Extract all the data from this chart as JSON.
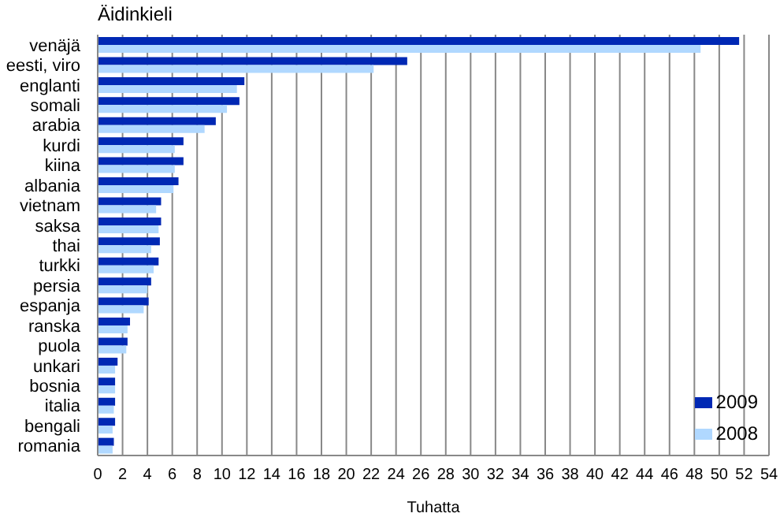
{
  "chart_data": {
    "type": "bar",
    "orientation": "horizontal",
    "title": "Äidinkieli",
    "xlabel": "Tuhatta",
    "categories": [
      "venäjä",
      "eesti, viro",
      "englanti",
      "somali",
      "arabia",
      "kurdi",
      "kiina",
      "albania",
      "vietnam",
      "saksa",
      "thai",
      "turkki",
      "persia",
      "espanja",
      "ranska",
      "puola",
      "unkari",
      "bosnia",
      "italia",
      "bengali",
      "romania"
    ],
    "series": [
      {
        "name": "2009",
        "color": "#0028b4",
        "values": [
          51.6,
          24.9,
          11.8,
          11.4,
          9.5,
          6.9,
          6.9,
          6.5,
          5.1,
          5.1,
          5.0,
          4.9,
          4.3,
          4.1,
          2.6,
          2.4,
          1.6,
          1.4,
          1.4,
          1.4,
          1.3
        ]
      },
      {
        "name": "2008",
        "color": "#b0d8ff",
        "values": [
          48.5,
          22.2,
          11.2,
          10.4,
          8.6,
          6.2,
          6.2,
          6.1,
          4.7,
          4.9,
          4.3,
          4.5,
          4.0,
          3.7,
          2.4,
          2.3,
          1.4,
          1.4,
          1.3,
          1.2,
          1.2
        ]
      }
    ],
    "xlim": [
      0,
      54
    ],
    "xticks": [
      0,
      2,
      4,
      6,
      8,
      10,
      12,
      14,
      16,
      18,
      20,
      22,
      24,
      26,
      28,
      30,
      32,
      34,
      36,
      38,
      40,
      42,
      44,
      46,
      48,
      50,
      52,
      54
    ],
    "grid": "x",
    "legend": "bottom right"
  }
}
